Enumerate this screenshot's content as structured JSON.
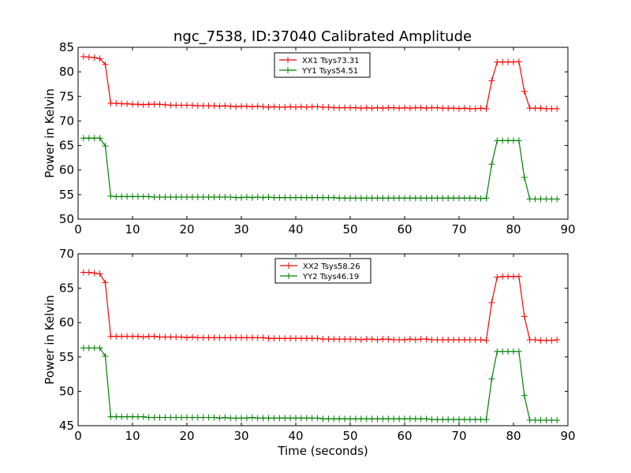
{
  "title": "ngc_7538, ID:37040 Calibrated Amplitude",
  "colors": {
    "red": "#ff0000",
    "green": "#008000"
  },
  "chart_data": [
    {
      "type": "line",
      "title": "ngc_7538, ID:37040 Calibrated Amplitude",
      "xlabel": "",
      "ylabel": "Power in Kelvin",
      "xlim": [
        0,
        90
      ],
      "ylim": [
        50,
        85
      ],
      "xticks": [
        0,
        10,
        20,
        30,
        40,
        50,
        60,
        70,
        80,
        90
      ],
      "yticks": [
        50,
        55,
        60,
        65,
        70,
        75,
        80,
        85
      ],
      "grid": false,
      "legend_position": "top-center",
      "x": [
        1,
        2,
        3,
        4,
        5,
        6,
        7,
        8,
        9,
        10,
        11,
        12,
        13,
        14,
        15,
        16,
        17,
        18,
        19,
        20,
        21,
        22,
        23,
        24,
        25,
        26,
        27,
        28,
        29,
        30,
        31,
        32,
        33,
        34,
        35,
        36,
        37,
        38,
        39,
        40,
        41,
        42,
        43,
        44,
        45,
        46,
        47,
        48,
        49,
        50,
        51,
        52,
        53,
        54,
        55,
        56,
        57,
        58,
        59,
        60,
        61,
        62,
        63,
        64,
        65,
        66,
        67,
        68,
        69,
        70,
        71,
        72,
        73,
        74,
        75,
        76,
        77,
        78,
        79,
        80,
        81,
        82,
        83,
        84,
        85,
        86,
        87,
        88
      ],
      "series": [
        {
          "name": "XX1 Tsys73.31",
          "color": "#ff0000",
          "values": [
            83.1,
            83.0,
            82.9,
            82.7,
            81.5,
            73.6,
            73.6,
            73.5,
            73.5,
            73.4,
            73.4,
            73.3,
            73.4,
            73.4,
            73.4,
            73.3,
            73.2,
            73.2,
            73.2,
            73.2,
            73.2,
            73.1,
            73.1,
            73.1,
            73.1,
            73.0,
            73.1,
            73.0,
            72.9,
            73.0,
            73.0,
            72.9,
            73.0,
            72.9,
            72.8,
            72.9,
            72.8,
            72.8,
            72.9,
            72.8,
            72.9,
            72.8,
            72.9,
            72.9,
            72.8,
            72.8,
            72.7,
            72.7,
            72.7,
            72.7,
            72.7,
            72.6,
            72.7,
            72.6,
            72.7,
            72.6,
            72.7,
            72.7,
            72.6,
            72.7,
            72.6,
            72.7,
            72.7,
            72.6,
            72.7,
            72.7,
            72.6,
            72.6,
            72.6,
            72.5,
            72.6,
            72.5,
            72.5,
            72.6,
            72.5,
            78.2,
            82.0,
            82.0,
            82.0,
            82.0,
            82.1,
            76.0,
            72.6,
            72.6,
            72.6,
            72.5,
            72.5,
            72.5
          ]
        },
        {
          "name": "YY1 Tsys54.51",
          "color": "#008000",
          "values": [
            66.5,
            66.5,
            66.5,
            66.5,
            64.9,
            54.7,
            54.6,
            54.6,
            54.6,
            54.6,
            54.6,
            54.6,
            54.6,
            54.5,
            54.5,
            54.5,
            54.5,
            54.5,
            54.5,
            54.5,
            54.5,
            54.5,
            54.5,
            54.5,
            54.5,
            54.5,
            54.5,
            54.5,
            54.4,
            54.4,
            54.5,
            54.4,
            54.5,
            54.4,
            54.5,
            54.4,
            54.4,
            54.4,
            54.4,
            54.4,
            54.4,
            54.4,
            54.4,
            54.4,
            54.4,
            54.4,
            54.4,
            54.3,
            54.3,
            54.3,
            54.3,
            54.3,
            54.3,
            54.3,
            54.3,
            54.3,
            54.3,
            54.3,
            54.3,
            54.3,
            54.3,
            54.3,
            54.3,
            54.3,
            54.3,
            54.3,
            54.3,
            54.3,
            54.3,
            54.3,
            54.3,
            54.3,
            54.3,
            54.2,
            54.3,
            61.2,
            66.0,
            66.0,
            66.0,
            66.0,
            66.0,
            58.5,
            54.1,
            54.1,
            54.1,
            54.1,
            54.1,
            54.1
          ]
        }
      ]
    },
    {
      "type": "line",
      "title": "",
      "xlabel": "Time (seconds)",
      "ylabel": "Power in Kelvin",
      "xlim": [
        0,
        90
      ],
      "ylim": [
        45,
        70
      ],
      "xticks": [
        0,
        10,
        20,
        30,
        40,
        50,
        60,
        70,
        80,
        90
      ],
      "yticks": [
        45,
        50,
        55,
        60,
        65,
        70
      ],
      "grid": false,
      "legend_position": "top-center",
      "x": [
        1,
        2,
        3,
        4,
        5,
        6,
        7,
        8,
        9,
        10,
        11,
        12,
        13,
        14,
        15,
        16,
        17,
        18,
        19,
        20,
        21,
        22,
        23,
        24,
        25,
        26,
        27,
        28,
        29,
        30,
        31,
        32,
        33,
        34,
        35,
        36,
        37,
        38,
        39,
        40,
        41,
        42,
        43,
        44,
        45,
        46,
        47,
        48,
        49,
        50,
        51,
        52,
        53,
        54,
        55,
        56,
        57,
        58,
        59,
        60,
        61,
        62,
        63,
        64,
        65,
        66,
        67,
        68,
        69,
        70,
        71,
        72,
        73,
        74,
        75,
        76,
        77,
        78,
        79,
        80,
        81,
        82,
        83,
        84,
        85,
        86,
        87,
        88
      ],
      "series": [
        {
          "name": "XX2 Tsys58.26",
          "color": "#ff0000",
          "values": [
            67.3,
            67.3,
            67.2,
            67.1,
            65.8,
            58.0,
            58.0,
            58.0,
            58.0,
            58.0,
            58.0,
            57.9,
            58.0,
            58.0,
            57.9,
            57.9,
            57.9,
            57.9,
            57.9,
            57.8,
            57.9,
            57.8,
            57.8,
            57.8,
            57.8,
            57.8,
            57.8,
            57.8,
            57.8,
            57.8,
            57.8,
            57.8,
            57.8,
            57.8,
            57.7,
            57.7,
            57.7,
            57.7,
            57.7,
            57.7,
            57.7,
            57.7,
            57.7,
            57.7,
            57.6,
            57.6,
            57.6,
            57.6,
            57.6,
            57.6,
            57.6,
            57.5,
            57.6,
            57.6,
            57.5,
            57.6,
            57.6,
            57.5,
            57.5,
            57.5,
            57.6,
            57.5,
            57.6,
            57.6,
            57.5,
            57.5,
            57.5,
            57.5,
            57.5,
            57.5,
            57.5,
            57.5,
            57.5,
            57.5,
            57.4,
            62.9,
            66.6,
            66.7,
            66.7,
            66.7,
            66.7,
            60.9,
            57.5,
            57.5,
            57.4,
            57.4,
            57.4,
            57.5
          ]
        },
        {
          "name": "YY2 Tsys46.19",
          "color": "#008000",
          "values": [
            56.3,
            56.3,
            56.3,
            56.3,
            55.1,
            46.3,
            46.3,
            46.3,
            46.3,
            46.3,
            46.3,
            46.3,
            46.2,
            46.2,
            46.2,
            46.2,
            46.2,
            46.2,
            46.2,
            46.2,
            46.2,
            46.2,
            46.2,
            46.2,
            46.2,
            46.1,
            46.2,
            46.1,
            46.1,
            46.1,
            46.1,
            46.2,
            46.1,
            46.1,
            46.1,
            46.1,
            46.1,
            46.1,
            46.1,
            46.1,
            46.1,
            46.1,
            46.1,
            46.1,
            46.0,
            46.0,
            46.0,
            46.0,
            46.0,
            46.0,
            46.0,
            46.0,
            46.0,
            46.0,
            46.0,
            46.0,
            46.0,
            46.0,
            46.0,
            46.0,
            46.0,
            46.0,
            46.0,
            46.0,
            45.9,
            45.9,
            45.9,
            45.9,
            45.9,
            45.9,
            45.9,
            45.9,
            45.9,
            45.9,
            45.9,
            51.8,
            55.8,
            55.8,
            55.8,
            55.8,
            55.8,
            49.4,
            45.8,
            45.8,
            45.8,
            45.8,
            45.8,
            45.8
          ]
        }
      ]
    }
  ]
}
